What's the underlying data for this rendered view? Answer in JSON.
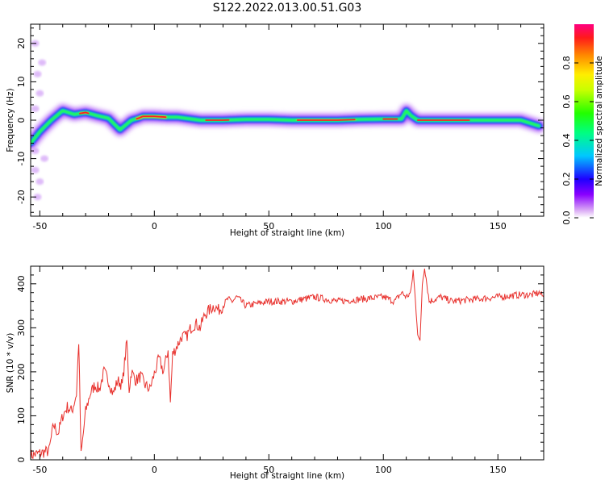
{
  "title": "S122.2022.013.00.51.G03",
  "chart_data": [
    {
      "type": "heatmap",
      "xlabel": "Height of straight line (km)",
      "ylabel": "Frequency (Hz)",
      "xlim": [
        -54,
        170
      ],
      "ylim": [
        -25,
        25
      ],
      "xticks": [
        -50,
        0,
        50,
        100,
        150
      ],
      "yticks": [
        -20,
        -10,
        0,
        10,
        20
      ],
      "colorbar": {
        "label": "Normalized spectral amplitude",
        "range": [
          0,
          1
        ],
        "ticks": [
          0.0,
          0.2,
          0.4,
          0.6,
          0.8
        ],
        "tick_labels": [
          "0.0",
          "0.2",
          "0.4",
          "0.6",
          "0.8"
        ]
      },
      "ridge": {
        "x": [
          -54,
          -50,
          -45,
          -40,
          -35,
          -30,
          -25,
          -20,
          -15,
          -10,
          -7,
          -5,
          0,
          5,
          10,
          20,
          30,
          40,
          50,
          60,
          70,
          80,
          90,
          100,
          108,
          110,
          112,
          115,
          120,
          130,
          140,
          150,
          160,
          168
        ],
        "y": [
          -6,
          -3,
          0,
          2.5,
          1.5,
          2,
          1.2,
          0.5,
          -2.5,
          0,
          0.5,
          1,
          1,
          0.8,
          0.8,
          0,
          0,
          0.2,
          0.2,
          0,
          0,
          0,
          0.2,
          0.3,
          0.3,
          2.5,
          1.2,
          0,
          0,
          0,
          0,
          0,
          0,
          -1.5
        ]
      }
    },
    {
      "type": "line",
      "xlabel": "Height of straight line (km)",
      "ylabel": "SNR (10 * v/v)",
      "xlim": [
        -54,
        170
      ],
      "ylim": [
        0,
        440
      ],
      "xticks": [
        -50,
        0,
        50,
        100,
        150
      ],
      "yticks": [
        0,
        100,
        200,
        300,
        400
      ],
      "color": "#e8302c",
      "series": [
        {
          "x": [
            -54,
            -50,
            -46,
            -44,
            -42,
            -40,
            -38,
            -36,
            -34,
            -33,
            -32,
            -30,
            -28,
            -26,
            -24,
            -22,
            -20,
            -18,
            -16,
            -14,
            -12,
            -11,
            -10,
            -8,
            -6,
            -4,
            -2,
            0,
            2,
            4,
            6,
            7,
            8,
            10,
            12,
            14,
            16,
            18,
            20,
            22,
            24,
            26,
            28,
            30,
            32,
            34,
            36,
            40,
            50,
            60,
            70,
            80,
            90,
            100,
            105,
            108,
            110,
            112,
            113,
            115,
            116,
            117,
            118,
            120,
            125,
            130,
            140,
            150,
            160,
            165,
            168,
            170
          ],
          "y": [
            10,
            15,
            20,
            80,
            60,
            100,
            120,
            110,
            150,
            270,
            10,
            110,
            150,
            170,
            160,
            200,
            180,
            150,
            180,
            170,
            270,
            160,
            200,
            180,
            190,
            170,
            160,
            195,
            230,
            200,
            250,
            130,
            240,
            260,
            280,
            280,
            300,
            310,
            300,
            330,
            340,
            350,
            340,
            350,
            365,
            360,
            370,
            350,
            360,
            360,
            370,
            360,
            365,
            370,
            360,
            380,
            370,
            380,
            430,
            290,
            265,
            400,
            440,
            360,
            370,
            360,
            365,
            370,
            375,
            375,
            380,
            370
          ]
        }
      ]
    }
  ]
}
